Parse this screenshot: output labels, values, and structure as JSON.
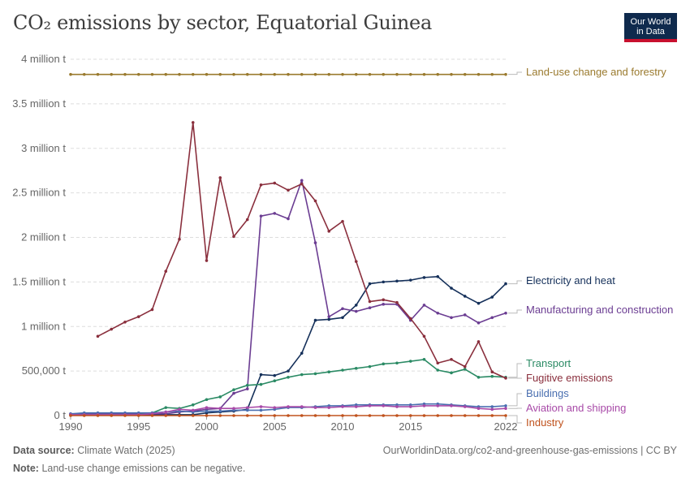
{
  "header": {
    "title": "CO₂ emissions by sector, Equatorial Guinea",
    "logo_line1": "Our World",
    "logo_line2": "in Data"
  },
  "footer": {
    "source_label": "Data source:",
    "source_text": "Climate Watch (2025)",
    "url_text": "OurWorldinData.org/co2-and-greenhouse-gas-emissions | CC BY",
    "note_label": "Note:",
    "note_text": "Land-use change emissions can be negative."
  },
  "chart_data": {
    "type": "line",
    "title": "CO₂ emissions by sector, Equatorial Guinea",
    "xlim": [
      1990,
      2022
    ],
    "ylim": [
      0,
      4000000
    ],
    "x_ticks": [
      1990,
      1995,
      2000,
      2005,
      2010,
      2015,
      2022
    ],
    "y_ticks": [
      {
        "value": 0,
        "label": "0 t"
      },
      {
        "value": 500000,
        "label": "500,000 t"
      },
      {
        "value": 1000000,
        "label": "1 million t"
      },
      {
        "value": 1500000,
        "label": "1.5 million t"
      },
      {
        "value": 2000000,
        "label": "2 million t"
      },
      {
        "value": 2500000,
        "label": "2.5 million t"
      },
      {
        "value": 3000000,
        "label": "3 million t"
      },
      {
        "value": 3500000,
        "label": "3.5 million t"
      },
      {
        "value": 4000000,
        "label": "4 million t"
      }
    ],
    "grid": true,
    "legend_placement": "right, inline labels",
    "series": [
      {
        "name": "Land-use change and forestry",
        "color": "#9a7a2e",
        "x_start": 1990,
        "values": [
          3830000,
          3830000,
          3830000,
          3830000,
          3830000,
          3830000,
          3830000,
          3830000,
          3830000,
          3830000,
          3830000,
          3830000,
          3830000,
          3830000,
          3830000,
          3830000,
          3830000,
          3830000,
          3830000,
          3830000,
          3830000,
          3830000,
          3830000,
          3830000,
          3830000,
          3830000,
          3830000,
          3830000,
          3830000,
          3830000,
          3830000,
          3830000,
          3830000
        ]
      },
      {
        "name": "Electricity and heat",
        "color": "#15305a",
        "x_start": 1990,
        "values": [
          10000,
          10000,
          10000,
          10000,
          10000,
          10000,
          10000,
          10000,
          10000,
          10000,
          30000,
          40000,
          50000,
          70000,
          460000,
          450000,
          500000,
          700000,
          1070000,
          1080000,
          1100000,
          1240000,
          1480000,
          1500000,
          1510000,
          1520000,
          1550000,
          1560000,
          1430000,
          1340000,
          1260000,
          1330000,
          1480000
        ]
      },
      {
        "name": "Manufacturing and construction",
        "color": "#6b3d92",
        "x_start": 1990,
        "values": [
          20000,
          20000,
          20000,
          20000,
          20000,
          20000,
          20000,
          20000,
          40000,
          50000,
          70000,
          80000,
          250000,
          300000,
          2240000,
          2270000,
          2210000,
          2640000,
          1940000,
          1110000,
          1200000,
          1170000,
          1210000,
          1250000,
          1250000,
          1070000,
          1240000,
          1150000,
          1100000,
          1130000,
          1040000,
          1100000,
          1150000
        ]
      },
      {
        "name": "Transport",
        "color": "#2a8a64",
        "x_start": 1990,
        "values": [
          10000,
          10000,
          10000,
          10000,
          10000,
          10000,
          30000,
          90000,
          80000,
          120000,
          180000,
          210000,
          290000,
          340000,
          350000,
          390000,
          430000,
          460000,
          470000,
          490000,
          510000,
          530000,
          550000,
          580000,
          590000,
          610000,
          630000,
          510000,
          480000,
          520000,
          430000,
          440000,
          430000
        ]
      },
      {
        "name": "Fugitive emissions",
        "color": "#8a2f3d",
        "x_start": 1992,
        "values": [
          890000,
          970000,
          1050000,
          1110000,
          1190000,
          1620000,
          1980000,
          3290000,
          1740000,
          2670000,
          2010000,
          2200000,
          2590000,
          2610000,
          2530000,
          2600000,
          2410000,
          2070000,
          2180000,
          1730000,
          1280000,
          1300000,
          1270000,
          1090000,
          890000,
          590000,
          630000,
          550000,
          830000,
          490000,
          420000
        ]
      },
      {
        "name": "Buildings",
        "color": "#4a6fb0",
        "x_start": 1990,
        "values": [
          20000,
          30000,
          30000,
          30000,
          30000,
          30000,
          30000,
          40000,
          50000,
          40000,
          50000,
          50000,
          60000,
          60000,
          60000,
          70000,
          90000,
          90000,
          100000,
          110000,
          110000,
          120000,
          120000,
          120000,
          120000,
          120000,
          130000,
          130000,
          120000,
          110000,
          100000,
          100000,
          110000
        ]
      },
      {
        "name": "Aviation and shipping",
        "color": "#a84aa8",
        "x_start": 1990,
        "values": [
          10000,
          10000,
          10000,
          10000,
          10000,
          10000,
          20000,
          40000,
          70000,
          60000,
          90000,
          80000,
          80000,
          90000,
          100000,
          90000,
          100000,
          100000,
          90000,
          90000,
          100000,
          100000,
          110000,
          110000,
          100000,
          100000,
          110000,
          110000,
          110000,
          100000,
          80000,
          70000,
          80000
        ]
      },
      {
        "name": "Industry",
        "color": "#c0521d",
        "x_start": 1990,
        "values": [
          0,
          0,
          0,
          0,
          0,
          0,
          0,
          0,
          0,
          0,
          0,
          0,
          0,
          0,
          0,
          0,
          0,
          0,
          0,
          0,
          0,
          0,
          0,
          0,
          0,
          0,
          0,
          0,
          0,
          0,
          0,
          0,
          0
        ]
      }
    ]
  }
}
